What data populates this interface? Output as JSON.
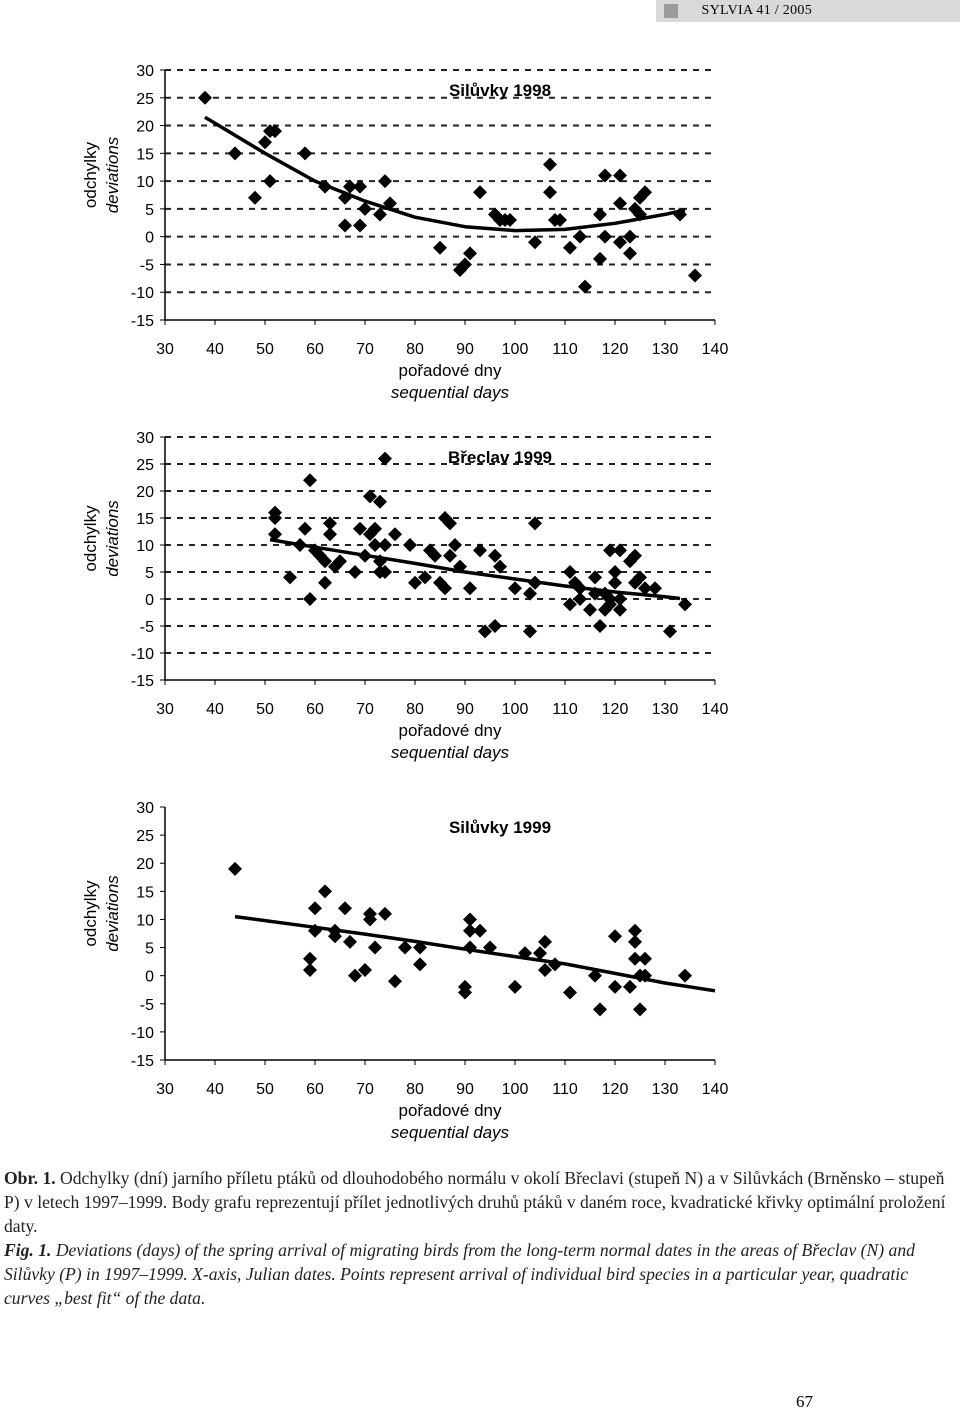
{
  "header": {
    "journal": "SYLVIA 41 / 2005"
  },
  "chart_data": [
    {
      "type": "scatter",
      "title": "Silůvky 1998",
      "xlabel_cz": "pořadové dny",
      "xlabel_en": "sequential days",
      "ylabel_cz": "odchylky",
      "ylabel_en": "deviations",
      "xlim": [
        30,
        140
      ],
      "ylim": [
        -15,
        30
      ],
      "xticks": [
        30,
        40,
        50,
        60,
        70,
        80,
        90,
        100,
        110,
        120,
        130,
        140
      ],
      "yticks": [
        30,
        25,
        20,
        15,
        10,
        5,
        0,
        -5,
        -10,
        -15
      ],
      "grid": "horizontal dashed",
      "points": [
        [
          38,
          25
        ],
        [
          44,
          15
        ],
        [
          48,
          7
        ],
        [
          50,
          17
        ],
        [
          51,
          19
        ],
        [
          52,
          19
        ],
        [
          51,
          10
        ],
        [
          58,
          15
        ],
        [
          62,
          9
        ],
        [
          66,
          7
        ],
        [
          67,
          9
        ],
        [
          69,
          9
        ],
        [
          66,
          2
        ],
        [
          69,
          2
        ],
        [
          70,
          5
        ],
        [
          73,
          4
        ],
        [
          74,
          10
        ],
        [
          75,
          6
        ],
        [
          85,
          -2
        ],
        [
          89,
          -6
        ],
        [
          90,
          -5
        ],
        [
          91,
          -3
        ],
        [
          93,
          8
        ],
        [
          96,
          4
        ],
        [
          97,
          3
        ],
        [
          98,
          3
        ],
        [
          99,
          3
        ],
        [
          104,
          -1
        ],
        [
          107,
          13
        ],
        [
          107,
          8
        ],
        [
          108,
          3
        ],
        [
          109,
          3
        ],
        [
          111,
          -2
        ],
        [
          113,
          0
        ],
        [
          114,
          -9
        ],
        [
          117,
          -4
        ],
        [
          117,
          4
        ],
        [
          118,
          11
        ],
        [
          118,
          0
        ],
        [
          121,
          11
        ],
        [
          121,
          6
        ],
        [
          121,
          -1
        ],
        [
          123,
          0
        ],
        [
          123,
          -3
        ],
        [
          124,
          5
        ],
        [
          125,
          4
        ],
        [
          125,
          7
        ],
        [
          126,
          8
        ],
        [
          133,
          4
        ],
        [
          136,
          -7
        ]
      ],
      "curve": [
        [
          38,
          21.5
        ],
        [
          50,
          15
        ],
        [
          60,
          10
        ],
        [
          70,
          6.4
        ],
        [
          80,
          3.5
        ],
        [
          90,
          1.8
        ],
        [
          100,
          1.1
        ],
        [
          110,
          1.3
        ],
        [
          120,
          2.4
        ],
        [
          130,
          4.0
        ],
        [
          134,
          4.8
        ]
      ]
    },
    {
      "type": "scatter",
      "title": "Břeclav 1999",
      "xlabel_cz": "pořadové dny",
      "xlabel_en": "sequential days",
      "ylabel_cz": "odchylky",
      "ylabel_en": "deviations",
      "xlim": [
        30,
        140
      ],
      "ylim": [
        -15,
        30
      ],
      "xticks": [
        30,
        40,
        50,
        60,
        70,
        80,
        90,
        100,
        110,
        120,
        130,
        140
      ],
      "yticks": [
        30,
        25,
        20,
        15,
        10,
        5,
        0,
        -5,
        -10,
        -15
      ],
      "grid": "horizontal dashed",
      "points": [
        [
          52,
          16
        ],
        [
          52,
          15
        ],
        [
          52,
          12
        ],
        [
          55,
          4
        ],
        [
          57,
          10
        ],
        [
          58,
          13
        ],
        [
          59,
          22
        ],
        [
          59,
          0
        ],
        [
          60,
          9
        ],
        [
          61,
          8
        ],
        [
          62,
          7
        ],
        [
          62,
          3
        ],
        [
          63,
          14
        ],
        [
          63,
          12
        ],
        [
          64,
          6
        ],
        [
          65,
          7
        ],
        [
          68,
          5
        ],
        [
          69,
          13
        ],
        [
          70,
          8
        ],
        [
          71,
          19
        ],
        [
          71,
          12
        ],
        [
          72,
          13
        ],
        [
          72,
          10
        ],
        [
          73,
          18
        ],
        [
          73,
          7
        ],
        [
          73,
          5
        ],
        [
          74,
          5
        ],
        [
          74,
          10
        ],
        [
          74,
          26
        ],
        [
          76,
          12
        ],
        [
          79,
          10
        ],
        [
          80,
          3
        ],
        [
          82,
          4
        ],
        [
          83,
          9
        ],
        [
          84,
          8
        ],
        [
          85,
          3
        ],
        [
          86,
          15
        ],
        [
          86,
          2
        ],
        [
          87,
          8
        ],
        [
          87,
          14
        ],
        [
          88,
          10
        ],
        [
          89,
          6
        ],
        [
          91,
          2
        ],
        [
          93,
          9
        ],
        [
          94,
          -6
        ],
        [
          96,
          8
        ],
        [
          96,
          -5
        ],
        [
          97,
          6
        ],
        [
          100,
          2
        ],
        [
          103,
          1
        ],
        [
          103,
          -6
        ],
        [
          104,
          3
        ],
        [
          104,
          14
        ],
        [
          104,
          3
        ],
        [
          111,
          5
        ],
        [
          111,
          -1
        ],
        [
          112,
          3
        ],
        [
          113,
          0
        ],
        [
          113,
          2
        ],
        [
          115,
          -2
        ],
        [
          116,
          1
        ],
        [
          116,
          4
        ],
        [
          117,
          -5
        ],
        [
          118,
          1
        ],
        [
          118,
          -2
        ],
        [
          119,
          9
        ],
        [
          119,
          -1
        ],
        [
          119,
          0
        ],
        [
          120,
          5
        ],
        [
          120,
          3
        ],
        [
          121,
          -2
        ],
        [
          121,
          9
        ],
        [
          121,
          0
        ],
        [
          123,
          7
        ],
        [
          124,
          8
        ],
        [
          124,
          3
        ],
        [
          125,
          4
        ],
        [
          126,
          2
        ],
        [
          128,
          2
        ],
        [
          131,
          -6
        ],
        [
          134,
          -1
        ]
      ],
      "curve": [
        [
          51,
          11
        ],
        [
          60,
          9.6
        ],
        [
          70,
          8.1
        ],
        [
          80,
          6.6
        ],
        [
          90,
          5.0
        ],
        [
          100,
          3.7
        ],
        [
          110,
          2.4
        ],
        [
          120,
          1.3
        ],
        [
          130,
          0.4
        ],
        [
          133,
          0.1
        ]
      ]
    },
    {
      "type": "scatter",
      "title": "Silůvky 1999",
      "xlabel_cz": "pořadové dny",
      "xlabel_en": "sequential days",
      "ylabel_cz": "odchylky",
      "ylabel_en": "deviations",
      "xlim": [
        30,
        140
      ],
      "ylim": [
        -15,
        30
      ],
      "xticks": [
        30,
        40,
        50,
        60,
        70,
        80,
        90,
        100,
        110,
        120,
        130,
        140
      ],
      "yticks": [
        30,
        25,
        20,
        15,
        10,
        5,
        0,
        -5,
        -10,
        -15
      ],
      "grid": "none",
      "points": [
        [
          44,
          19
        ],
        [
          59,
          3
        ],
        [
          59,
          1
        ],
        [
          60,
          12
        ],
        [
          60,
          8
        ],
        [
          62,
          15
        ],
        [
          64,
          8
        ],
        [
          64,
          7
        ],
        [
          66,
          12
        ],
        [
          67,
          6
        ],
        [
          68,
          0
        ],
        [
          70,
          1
        ],
        [
          71,
          11
        ],
        [
          71,
          10
        ],
        [
          72,
          5
        ],
        [
          74,
          11
        ],
        [
          76,
          -1
        ],
        [
          78,
          5
        ],
        [
          81,
          5
        ],
        [
          81,
          2
        ],
        [
          90,
          -2
        ],
        [
          90,
          -3
        ],
        [
          91,
          10
        ],
        [
          91,
          8
        ],
        [
          91,
          5
        ],
        [
          93,
          8
        ],
        [
          95,
          5
        ],
        [
          100,
          -2
        ],
        [
          102,
          4
        ],
        [
          105,
          4
        ],
        [
          106,
          6
        ],
        [
          106,
          1
        ],
        [
          108,
          2
        ],
        [
          111,
          -3
        ],
        [
          116,
          0
        ],
        [
          117,
          -6
        ],
        [
          120,
          -2
        ],
        [
          120,
          7
        ],
        [
          123,
          -2
        ],
        [
          124,
          8
        ],
        [
          124,
          6
        ],
        [
          124,
          3
        ],
        [
          125,
          0
        ],
        [
          125,
          -6
        ],
        [
          126,
          3
        ],
        [
          126,
          0
        ],
        [
          134,
          0
        ]
      ],
      "curve": [
        [
          44,
          10.5
        ],
        [
          60,
          8.6
        ],
        [
          70,
          7.4
        ],
        [
          80,
          6.1
        ],
        [
          90,
          4.7
        ],
        [
          100,
          3.4
        ],
        [
          110,
          2.1
        ],
        [
          120,
          0.4
        ],
        [
          130,
          -1.3
        ],
        [
          140,
          -2.7
        ]
      ]
    }
  ],
  "caption": {
    "cz_label": "Obr. 1.",
    "cz_text": " Odchylky (dní) jarního příletu ptáků od dlouhodobého normálu v okolí Břeclavi (stupeň N) a v Silůvkách (Brněnsko – stupeň P) v letech 1997–1999. Body grafu reprezentují přílet jednotlivých druhů ptáků v daném roce, kvadratické křivky optimální proložení daty.",
    "en_label": "Fig. 1.",
    "en_text": " Deviations (days) of the spring arrival of migrating birds from the long-term normal dates in the areas of Břeclav (N) and Silůvky (P) in 1997–1999. X-axis, Julian dates. Points represent arrival of individual bird species in a particular year, quadratic curves „best fit“ of the data."
  },
  "page_number": "67"
}
